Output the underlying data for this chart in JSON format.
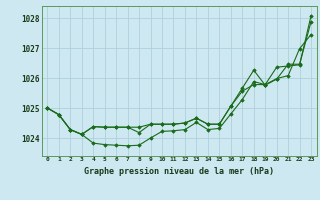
{
  "title": "Graphe pression niveau de la mer (hPa)",
  "bg_color": "#cde8f0",
  "grid_color": "#aecfdc",
  "line_color": "#1a6b1a",
  "x_ticks": [
    0,
    1,
    2,
    3,
    4,
    5,
    6,
    7,
    8,
    9,
    10,
    11,
    12,
    13,
    14,
    15,
    16,
    17,
    18,
    19,
    20,
    21,
    22,
    23
  ],
  "ylim": [
    1023.4,
    1028.4
  ],
  "y_ticks": [
    1024,
    1025,
    1026,
    1027,
    1028
  ],
  "figsize": [
    3.2,
    2.0
  ],
  "dpi": 100,
  "series": [
    [
      1025.0,
      1024.78,
      1024.28,
      1024.12,
      1023.83,
      1023.78,
      1023.76,
      1023.74,
      1023.76,
      1024.0,
      1024.22,
      1024.24,
      1024.28,
      1024.52,
      1024.28,
      1024.32,
      1024.8,
      1025.28,
      1025.88,
      1025.78,
      1025.98,
      1026.08,
      1026.98,
      1027.45
    ],
    [
      1025.0,
      1024.78,
      1024.28,
      1024.12,
      1024.38,
      1024.36,
      1024.36,
      1024.36,
      1024.36,
      1024.46,
      1024.46,
      1024.46,
      1024.5,
      1024.66,
      1024.46,
      1024.46,
      1025.06,
      1025.66,
      1026.26,
      1025.76,
      1025.96,
      1026.46,
      1026.46,
      1027.88
    ],
    [
      1025.0,
      1024.78,
      1024.28,
      1024.12,
      1024.38,
      1024.36,
      1024.36,
      1024.36,
      1024.18,
      1024.46,
      1024.46,
      1024.46,
      1024.5,
      1024.66,
      1024.46,
      1024.46,
      1025.06,
      1025.56,
      1025.78,
      1025.78,
      1026.36,
      1026.4,
      1026.44,
      1028.08
    ]
  ]
}
